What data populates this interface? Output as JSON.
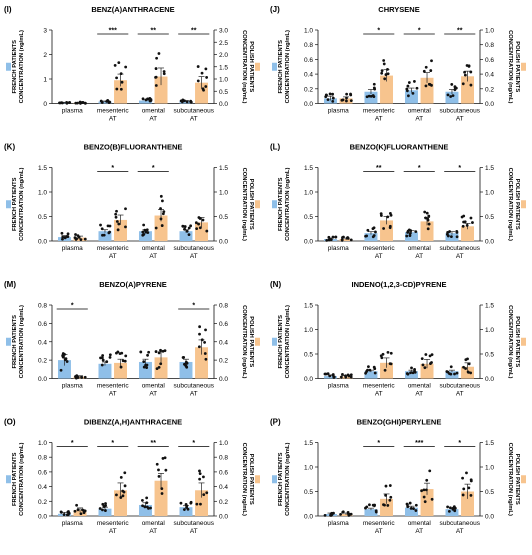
{
  "figure": {
    "colors": {
      "french": "#8fbfe8",
      "polish": "#f7c48e",
      "dot": "#111111",
      "axis": "#111111"
    },
    "left_axis_label": [
      "FRENCH PATIENTS",
      "CONCENTRATION (ng/mL)"
    ],
    "right_axis_label": [
      "POLISH PATIENTS",
      "CONCENTRATION (ng/mL)"
    ]
  },
  "chart_data": [
    {
      "panel": "(I)",
      "title": "BENZ(A)ANTHRACENE",
      "type": "bar",
      "categories": [
        [
          "plasma"
        ],
        [
          "mesenteric",
          "AT"
        ],
        [
          "omental",
          "AT"
        ],
        [
          "subcutaneous",
          "AT"
        ]
      ],
      "series": [
        {
          "values": [
            0.03,
            0.08,
            0.12,
            0.1
          ]
        },
        {
          "values": [
            0.03,
            0.95,
            1.1,
            0.85
          ]
        }
      ],
      "errors": [
        [
          0.02,
          0.02,
          0.03,
          0.02
        ],
        [
          0.02,
          0.25,
          0.35,
          0.25
        ]
      ],
      "left_ylim": [
        0,
        3
      ],
      "left_ticks": [
        "0",
        "1",
        "2",
        "3"
      ],
      "right_ylim": [
        0,
        3
      ],
      "right_ticks": [
        "0.0",
        "0.5",
        "1.0",
        "1.5",
        "2.0",
        "2.5",
        "3.0"
      ],
      "significance": [
        {
          "group": 1,
          "label": "***"
        },
        {
          "group": 2,
          "label": "**"
        },
        {
          "group": 3,
          "label": "**"
        }
      ]
    },
    {
      "panel": "(J)",
      "title": "CHRYSENE",
      "type": "bar",
      "categories": [
        [
          "plasma"
        ],
        [
          "mesenteric",
          "AT"
        ],
        [
          "omental",
          "AT"
        ],
        [
          "subcutaneous",
          "AT"
        ]
      ],
      "series": [
        {
          "values": [
            0.07,
            0.16,
            0.18,
            0.16
          ]
        },
        {
          "values": [
            0.07,
            0.38,
            0.35,
            0.37
          ]
        }
      ],
      "errors": [
        [
          0.03,
          0.03,
          0.03,
          0.03
        ],
        [
          0.02,
          0.08,
          0.07,
          0.07
        ]
      ],
      "left_ylim": [
        0,
        1
      ],
      "left_ticks": [
        "0.0",
        "0.2",
        "0.4",
        "0.6",
        "0.8",
        "1.0"
      ],
      "right_ylim": [
        0,
        1
      ],
      "right_ticks": [
        "0.0",
        "0.2",
        "0.4",
        "0.6",
        "0.8",
        "1.0"
      ],
      "significance": [
        {
          "group": 1,
          "label": "*"
        },
        {
          "group": 2,
          "label": "*"
        },
        {
          "group": 3,
          "label": "**"
        }
      ]
    },
    {
      "panel": "(K)",
      "title": "BENZO(B)FLUORANTHENE",
      "type": "bar",
      "categories": [
        [
          "plasma"
        ],
        [
          "mesenteric",
          "AT"
        ],
        [
          "omental",
          "AT"
        ],
        [
          "subcutaneous",
          "AT"
        ]
      ],
      "series": [
        {
          "values": [
            0.08,
            0.2,
            0.2,
            0.2
          ]
        },
        {
          "values": [
            0.07,
            0.43,
            0.52,
            0.38
          ]
        }
      ],
      "errors": [
        [
          0.03,
          0.03,
          0.03,
          0.03
        ],
        [
          0.03,
          0.1,
          0.12,
          0.1
        ]
      ],
      "left_ylim": [
        0,
        1.5
      ],
      "left_ticks": [
        "0.0",
        "0.5",
        "1.0",
        "1.5"
      ],
      "right_ylim": [
        0,
        1.5
      ],
      "right_ticks": [
        "0.0",
        "0.5",
        "1.0",
        "1.5"
      ],
      "significance": [
        {
          "group": 1,
          "label": "*"
        },
        {
          "group": 2,
          "label": "*"
        }
      ]
    },
    {
      "panel": "(L)",
      "title": "BENZO(K)FLUORANTHENE",
      "type": "bar",
      "categories": [
        [
          "plasma"
        ],
        [
          "mesenteric",
          "AT"
        ],
        [
          "omental",
          "AT"
        ],
        [
          "subcutaneous",
          "AT"
        ]
      ],
      "series": [
        {
          "values": [
            0.04,
            0.16,
            0.18,
            0.16
          ]
        },
        {
          "values": [
            0.04,
            0.42,
            0.4,
            0.3
          ]
        }
      ],
      "errors": [
        [
          0.02,
          0.03,
          0.03,
          0.03
        ],
        [
          0.02,
          0.08,
          0.08,
          0.06
        ]
      ],
      "left_ylim": [
        0,
        1.5
      ],
      "left_ticks": [
        "0.0",
        "0.5",
        "1.0",
        "1.5"
      ],
      "right_ylim": [
        0,
        1.5
      ],
      "right_ticks": [
        "0.0",
        "0.5",
        "1.0",
        "1.5"
      ],
      "significance": [
        {
          "group": 1,
          "label": "**"
        },
        {
          "group": 2,
          "label": "*"
        },
        {
          "group": 3,
          "label": "*"
        }
      ]
    },
    {
      "panel": "(M)",
      "title": "BENZO(A)PYRENE",
      "type": "bar",
      "categories": [
        [
          "plasma"
        ],
        [
          "mesenteric",
          "AT"
        ],
        [
          "omental",
          "AT"
        ],
        [
          "subcutaneous",
          "AT"
        ]
      ],
      "series": [
        {
          "values": [
            0.2,
            0.16,
            0.18,
            0.18
          ]
        },
        {
          "values": [
            0.02,
            0.17,
            0.23,
            0.34
          ]
        }
      ],
      "errors": [
        [
          0.06,
          0.02,
          0.03,
          0.03
        ],
        [
          0.01,
          0.04,
          0.06,
          0.08
        ]
      ],
      "left_ylim": [
        0,
        0.8
      ],
      "left_ticks": [
        "0.0",
        "0.2",
        "0.4",
        "0.6",
        "0.8"
      ],
      "right_ylim": [
        0,
        0.8
      ],
      "right_ticks": [
        "0.0",
        "0.2",
        "0.4",
        "0.6",
        "0.8"
      ],
      "significance": [
        {
          "group": 0,
          "label": "*"
        },
        {
          "group": 3,
          "label": "*"
        }
      ]
    },
    {
      "panel": "(N)",
      "title": "INDENO(1,2,3-CD)PYRENE",
      "type": "bar",
      "categories": [
        [
          "plasma"
        ],
        [
          "mesenteric",
          "AT"
        ],
        [
          "omental",
          "AT"
        ],
        [
          "subcutaneous",
          "AT"
        ]
      ],
      "series": [
        {
          "values": [
            0.05,
            0.15,
            0.15,
            0.15
          ]
        },
        {
          "values": [
            0.04,
            0.32,
            0.3,
            0.24
          ]
        }
      ],
      "errors": [
        [
          0.02,
          0.02,
          0.02,
          0.02
        ],
        [
          0.02,
          0.1,
          0.09,
          0.08
        ]
      ],
      "left_ylim": [
        0,
        1.5
      ],
      "left_ticks": [
        "0.0",
        "0.5",
        "1.0",
        "1.5"
      ],
      "right_ylim": [
        0,
        1.5
      ],
      "right_ticks": [
        "0.0",
        "0.5",
        "1.0",
        "1.5"
      ],
      "significance": []
    },
    {
      "panel": "(O)",
      "title": "DIBENZ(A,H)ANTHRACENE",
      "type": "bar",
      "categories": [
        [
          "plasma"
        ],
        [
          "mesenteric",
          "AT"
        ],
        [
          "omental",
          "AT"
        ],
        [
          "subcutaneous",
          "AT"
        ]
      ],
      "series": [
        {
          "values": [
            0.03,
            0.1,
            0.15,
            0.12
          ]
        },
        {
          "values": [
            0.08,
            0.35,
            0.48,
            0.35
          ]
        }
      ],
      "errors": [
        [
          0.02,
          0.02,
          0.03,
          0.02
        ],
        [
          0.03,
          0.1,
          0.1,
          0.1
        ]
      ],
      "left_ylim": [
        0,
        1
      ],
      "left_ticks": [
        "0.0",
        "0.2",
        "0.4",
        "0.6",
        "0.8",
        "1.0"
      ],
      "right_ylim": [
        0,
        1
      ],
      "right_ticks": [
        "0.0",
        "0.2",
        "0.4",
        "0.6",
        "0.8",
        "1.0"
      ],
      "significance": [
        {
          "group": 0,
          "label": "*"
        },
        {
          "group": 1,
          "label": "*"
        },
        {
          "group": 2,
          "label": "**"
        },
        {
          "group": 3,
          "label": "*"
        }
      ]
    },
    {
      "panel": "(P)",
      "title": "BENZO(GHI)PERYLENE",
      "type": "bar",
      "categories": [
        [
          "plasma"
        ],
        [
          "mesenteric",
          "AT"
        ],
        [
          "omental",
          "AT"
        ],
        [
          "subcutaneous",
          "AT"
        ]
      ],
      "series": [
        {
          "values": [
            0.04,
            0.14,
            0.17,
            0.14
          ]
        },
        {
          "values": [
            0.04,
            0.35,
            0.55,
            0.5
          ]
        }
      ],
      "errors": [
        [
          0.02,
          0.02,
          0.03,
          0.02
        ],
        [
          0.02,
          0.1,
          0.12,
          0.15
        ]
      ],
      "left_ylim": [
        0,
        1.5
      ],
      "left_ticks": [
        "0.0",
        "0.5",
        "1.0",
        "1.5"
      ],
      "right_ylim": [
        0,
        1.5
      ],
      "right_ticks": [
        "0.0",
        "0.5",
        "1.0",
        "1.5"
      ],
      "significance": [
        {
          "group": 1,
          "label": "*"
        },
        {
          "group": 2,
          "label": "***"
        },
        {
          "group": 3,
          "label": "*"
        }
      ]
    }
  ]
}
